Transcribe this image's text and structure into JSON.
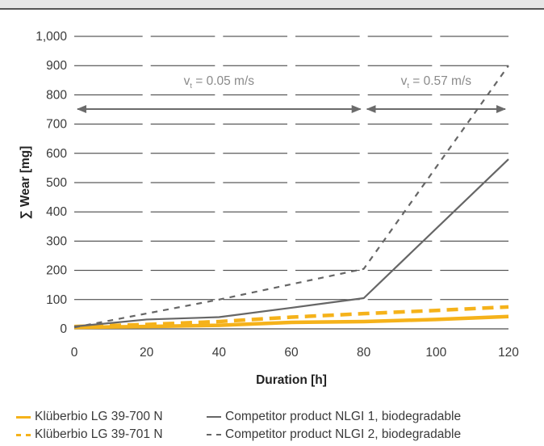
{
  "chart_data": {
    "type": "line",
    "title": "",
    "xlabel": "Duration [h]",
    "ylabel": "∑ Wear [mg]",
    "x_ticks": [
      "0",
      "20",
      "40",
      "60",
      "80",
      "100",
      "120"
    ],
    "y_ticks": [
      "0",
      "100",
      "200",
      "300",
      "400",
      "500",
      "600",
      "700",
      "800",
      "900",
      "1,000"
    ],
    "xlim": [
      0,
      120
    ],
    "ylim": [
      0,
      1000
    ],
    "grid": "horizontal",
    "legend_position": "bottom",
    "annotations": [
      {
        "label_main": "v",
        "label_sub": "t",
        "label_rest": " = 0.05 m/s",
        "range": [
          0,
          80
        ]
      },
      {
        "label_main": "v",
        "label_sub": "t",
        "label_rest": " = 0.57 m/s",
        "range": [
          80,
          120
        ]
      }
    ],
    "series": [
      {
        "name": "Klüberbio LG 39-700 N",
        "color": "#f5b21a",
        "style": "solid",
        "x": [
          0,
          20,
          40,
          60,
          80,
          100,
          120
        ],
        "y": [
          5,
          8,
          12,
          22,
          25,
          32,
          42
        ]
      },
      {
        "name": "Klüberbio LG 39-701 N",
        "color": "#f5b21a",
        "style": "dashed",
        "x": [
          0,
          20,
          40,
          60,
          80,
          100,
          120
        ],
        "y": [
          8,
          15,
          25,
          40,
          52,
          63,
          75
        ]
      },
      {
        "name": "Competitor product NLGI 1, biodegradable",
        "color": "#666666",
        "style": "solid",
        "x": [
          0,
          20,
          40,
          60,
          80,
          120
        ],
        "y": [
          8,
          32,
          40,
          72,
          105,
          580
        ]
      },
      {
        "name": "Competitor product NLGI 2, biodegradable",
        "color": "#666666",
        "style": "dashed",
        "x": [
          0,
          40,
          80,
          120
        ],
        "y": [
          5,
          100,
          205,
          900
        ]
      }
    ]
  }
}
